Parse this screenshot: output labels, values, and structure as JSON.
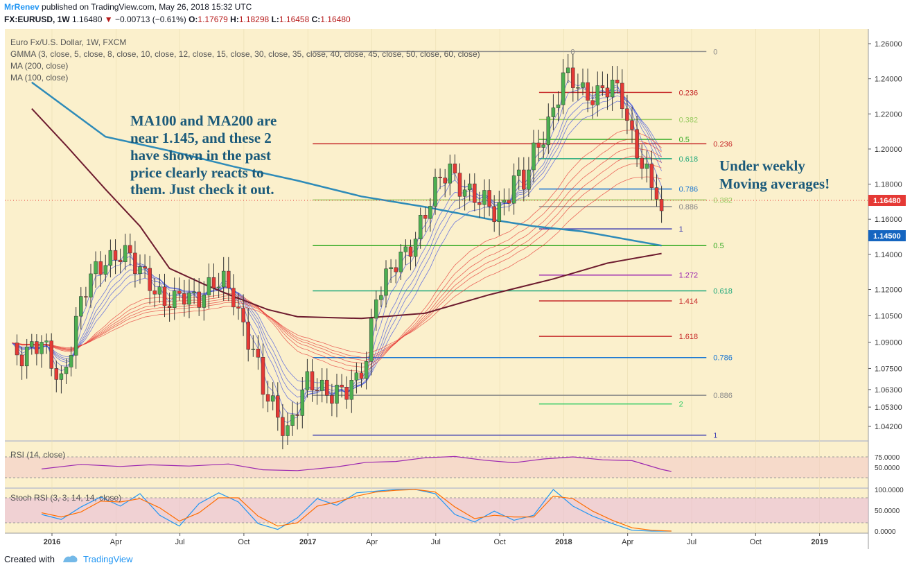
{
  "header": {
    "publisher": "MrRenev",
    "published_text": "published on TradingView.com, May 26, 2018 15:32 UTC",
    "symbol": "FX:EURUSD, 1W",
    "last": "1.16480",
    "change_arrow": "▼",
    "change": "−0.00713 (−0.61%)",
    "o_label": "O:",
    "o": "1.17679",
    "h_label": "H:",
    "h": "1.18298",
    "l_label": "L:",
    "l": "1.16458",
    "c_label": "C:",
    "c": "1.16480"
  },
  "legend": {
    "instrument": "Euro Fx/U.S. Dollar, 1W, FXCM",
    "gmma": "GMMA (3, close, 5, close, 8, close, 10, close, 12, close, 15, close, 30, close, 35, close, 40, close, 45, close, 50, close, 60, close)",
    "ma200": "MA (200, close)",
    "ma100": "MA (100, close)"
  },
  "annotations": {
    "left_note": [
      "MA100 and MA200 are",
      "near 1.145, and these 2",
      "have shown in the past",
      "price clearly reacts to",
      "them. Just check it out."
    ],
    "right_note": [
      "Under weekly",
      "Moving averages!"
    ]
  },
  "colors": {
    "background": "#fbf0cc",
    "bull": "#4caf50",
    "bear": "#e53935",
    "ma200": "#2e8bb8",
    "ma100": "#6d1b2e",
    "gmma_fast": "#3f51e0",
    "gmma_slow": "#e53935",
    "price_label": "#e53935",
    "ma_label": "#1565c0"
  },
  "price_labels": {
    "current": "1.16480",
    "ma": "1.14500"
  },
  "footer": {
    "created_with": "Created with",
    "brand": "TradingView"
  },
  "chart_data": {
    "type": "candlestick",
    "title": "Euro Fx/U.S. Dollar, 1W, FXCM",
    "ylim": [
      1.035,
      1.262
    ],
    "y_ticks": [
      "1.26000",
      "1.24000",
      "1.22000",
      "1.20000",
      "1.18000",
      "1.16000",
      "1.14000",
      "1.12000",
      "1.10500",
      "1.09000",
      "1.07500",
      "1.06300",
      "1.05300",
      "1.04200"
    ],
    "x_ticks": [
      "2016",
      "Apr",
      "Jul",
      "Oct",
      "2017",
      "Apr",
      "Jul",
      "Oct",
      "2018",
      "Apr",
      "Jul",
      "Oct",
      "2019"
    ],
    "x_tick_weeks": [
      0,
      13,
      26,
      39,
      52,
      65,
      78,
      91,
      104,
      117,
      130,
      143,
      156
    ],
    "fib_levels": [
      {
        "label": "0",
        "price": 1.2555,
        "color": "#888888",
        "w0": 104,
        "w1": 133
      },
      {
        "label": "0",
        "price": 1.2555,
        "color": "#888888",
        "w0": 53,
        "w1": 104
      },
      {
        "label": "0.236",
        "price": 1.2322,
        "color": "#c62828",
        "w0": 99,
        "w1": 126
      },
      {
        "label": "0.382",
        "price": 1.2168,
        "color": "#9ccc65",
        "w0": 99,
        "w1": 126
      },
      {
        "label": "0.5",
        "price": 1.2055,
        "color": "#33aa22",
        "w0": 99,
        "w1": 126
      },
      {
        "label": "0.236",
        "price": 1.203,
        "color": "#c62828",
        "w0": 53,
        "w1": 133
      },
      {
        "label": "0.618",
        "price": 1.1945,
        "color": "#1ea87a",
        "w0": 99,
        "w1": 126
      },
      {
        "label": "0.786",
        "price": 1.1772,
        "color": "#1976d2",
        "w0": 99,
        "w1": 126
      },
      {
        "label": "0.382",
        "price": 1.171,
        "color": "#9ccc65",
        "w0": 53,
        "w1": 133
      },
      {
        "label": "0.886",
        "price": 1.1672,
        "color": "#888888",
        "w0": 99,
        "w1": 126
      },
      {
        "label": "1",
        "price": 1.1545,
        "color": "#3f3fb0",
        "w0": 99,
        "w1": 126
      },
      {
        "label": "0.5",
        "price": 1.145,
        "color": "#33aa22",
        "w0": 53,
        "w1": 133
      },
      {
        "label": "1.272",
        "price": 1.1282,
        "color": "#9c27b0",
        "w0": 99,
        "w1": 126
      },
      {
        "label": "0.618",
        "price": 1.1192,
        "color": "#1ea87a",
        "w0": 53,
        "w1": 133
      },
      {
        "label": "1.414",
        "price": 1.1135,
        "color": "#c62828",
        "w0": 99,
        "w1": 126
      },
      {
        "label": "1.618",
        "price": 1.0933,
        "color": "#c62828",
        "w0": 99,
        "w1": 126
      },
      {
        "label": "0.786",
        "price": 1.0812,
        "color": "#1976d2",
        "w0": 53,
        "w1": 133
      },
      {
        "label": "0.886",
        "price": 1.0597,
        "color": "#888888",
        "w0": 53,
        "w1": 133
      },
      {
        "label": "2",
        "price": 1.0548,
        "color": "#33cc66",
        "w0": 99,
        "w1": 126
      },
      {
        "label": "1",
        "price": 1.037,
        "color": "#3f3fb0",
        "w0": 53,
        "w1": 133
      }
    ],
    "ma200": {
      "name": "MA (200, close)",
      "points": [
        [
          -2,
          1.238
        ],
        [
          13,
          1.207
        ],
        [
          26,
          1.199
        ],
        [
          39,
          1.19
        ],
        [
          52,
          1.182
        ],
        [
          65,
          1.173
        ],
        [
          78,
          1.167
        ],
        [
          91,
          1.16
        ],
        [
          100,
          1.156
        ],
        [
          110,
          1.153
        ],
        [
          120,
          1.148
        ],
        [
          126,
          1.145
        ]
      ]
    },
    "ma100": {
      "name": "MA (100, close)",
      "points": [
        [
          -2,
          1.223
        ],
        [
          5,
          1.202
        ],
        [
          13,
          1.177
        ],
        [
          20,
          1.156
        ],
        [
          26,
          1.132
        ],
        [
          33,
          1.123
        ],
        [
          39,
          1.116
        ],
        [
          46,
          1.1085
        ],
        [
          52,
          1.1045
        ],
        [
          65,
          1.1035
        ],
        [
          78,
          1.1065
        ],
        [
          91,
          1.117
        ],
        [
          104,
          1.126
        ],
        [
          115,
          1.135
        ],
        [
          126,
          1.1405
        ]
      ]
    },
    "rsi": {
      "name": "RSI (14, close)",
      "ylim": [
        0,
        100
      ],
      "ticks": [
        "75.0000",
        "50.0000"
      ],
      "values": [
        [
          0,
          46
        ],
        [
          8,
          57
        ],
        [
          16,
          52
        ],
        [
          22,
          56
        ],
        [
          30,
          53
        ],
        [
          38,
          58
        ],
        [
          45,
          44
        ],
        [
          52,
          42
        ],
        [
          60,
          51
        ],
        [
          66,
          62
        ],
        [
          72,
          64
        ],
        [
          78,
          73
        ],
        [
          84,
          76
        ],
        [
          90,
          67
        ],
        [
          96,
          61
        ],
        [
          102,
          70
        ],
        [
          108,
          75
        ],
        [
          114,
          68
        ],
        [
          120,
          66
        ],
        [
          126,
          45
        ],
        [
          128,
          40
        ]
      ]
    },
    "stoch_rsi": {
      "name": "Stoch RSI (3, 3, 14, 14, close)",
      "ylim": [
        0,
        100
      ],
      "ticks": [
        "100.0000",
        "50.0000",
        "0.0000"
      ],
      "k": [
        [
          0,
          40
        ],
        [
          4,
          28
        ],
        [
          8,
          58
        ],
        [
          12,
          82
        ],
        [
          16,
          60
        ],
        [
          20,
          90
        ],
        [
          24,
          38
        ],
        [
          28,
          12
        ],
        [
          32,
          66
        ],
        [
          36,
          92
        ],
        [
          40,
          70
        ],
        [
          44,
          18
        ],
        [
          48,
          4
        ],
        [
          52,
          32
        ],
        [
          56,
          78
        ],
        [
          60,
          62
        ],
        [
          64,
          92
        ],
        [
          68,
          96
        ],
        [
          72,
          100
        ],
        [
          76,
          100
        ],
        [
          80,
          90
        ],
        [
          84,
          40
        ],
        [
          88,
          22
        ],
        [
          92,
          48
        ],
        [
          96,
          26
        ],
        [
          100,
          38
        ],
        [
          104,
          100
        ],
        [
          108,
          60
        ],
        [
          112,
          36
        ],
        [
          116,
          18
        ],
        [
          120,
          2
        ],
        [
          124,
          0
        ],
        [
          128,
          0
        ]
      ],
      "d": [
        [
          0,
          44
        ],
        [
          4,
          34
        ],
        [
          8,
          46
        ],
        [
          12,
          72
        ],
        [
          16,
          70
        ],
        [
          20,
          78
        ],
        [
          24,
          56
        ],
        [
          28,
          24
        ],
        [
          32,
          44
        ],
        [
          36,
          80
        ],
        [
          40,
          80
        ],
        [
          44,
          36
        ],
        [
          48,
          12
        ],
        [
          52,
          20
        ],
        [
          56,
          60
        ],
        [
          60,
          70
        ],
        [
          64,
          84
        ],
        [
          68,
          94
        ],
        [
          72,
          98
        ],
        [
          76,
          100
        ],
        [
          80,
          94
        ],
        [
          84,
          58
        ],
        [
          88,
          30
        ],
        [
          92,
          38
        ],
        [
          96,
          34
        ],
        [
          100,
          34
        ],
        [
          104,
          84
        ],
        [
          108,
          78
        ],
        [
          112,
          48
        ],
        [
          116,
          26
        ],
        [
          120,
          8
        ],
        [
          124,
          2
        ],
        [
          128,
          0
        ]
      ]
    }
  }
}
